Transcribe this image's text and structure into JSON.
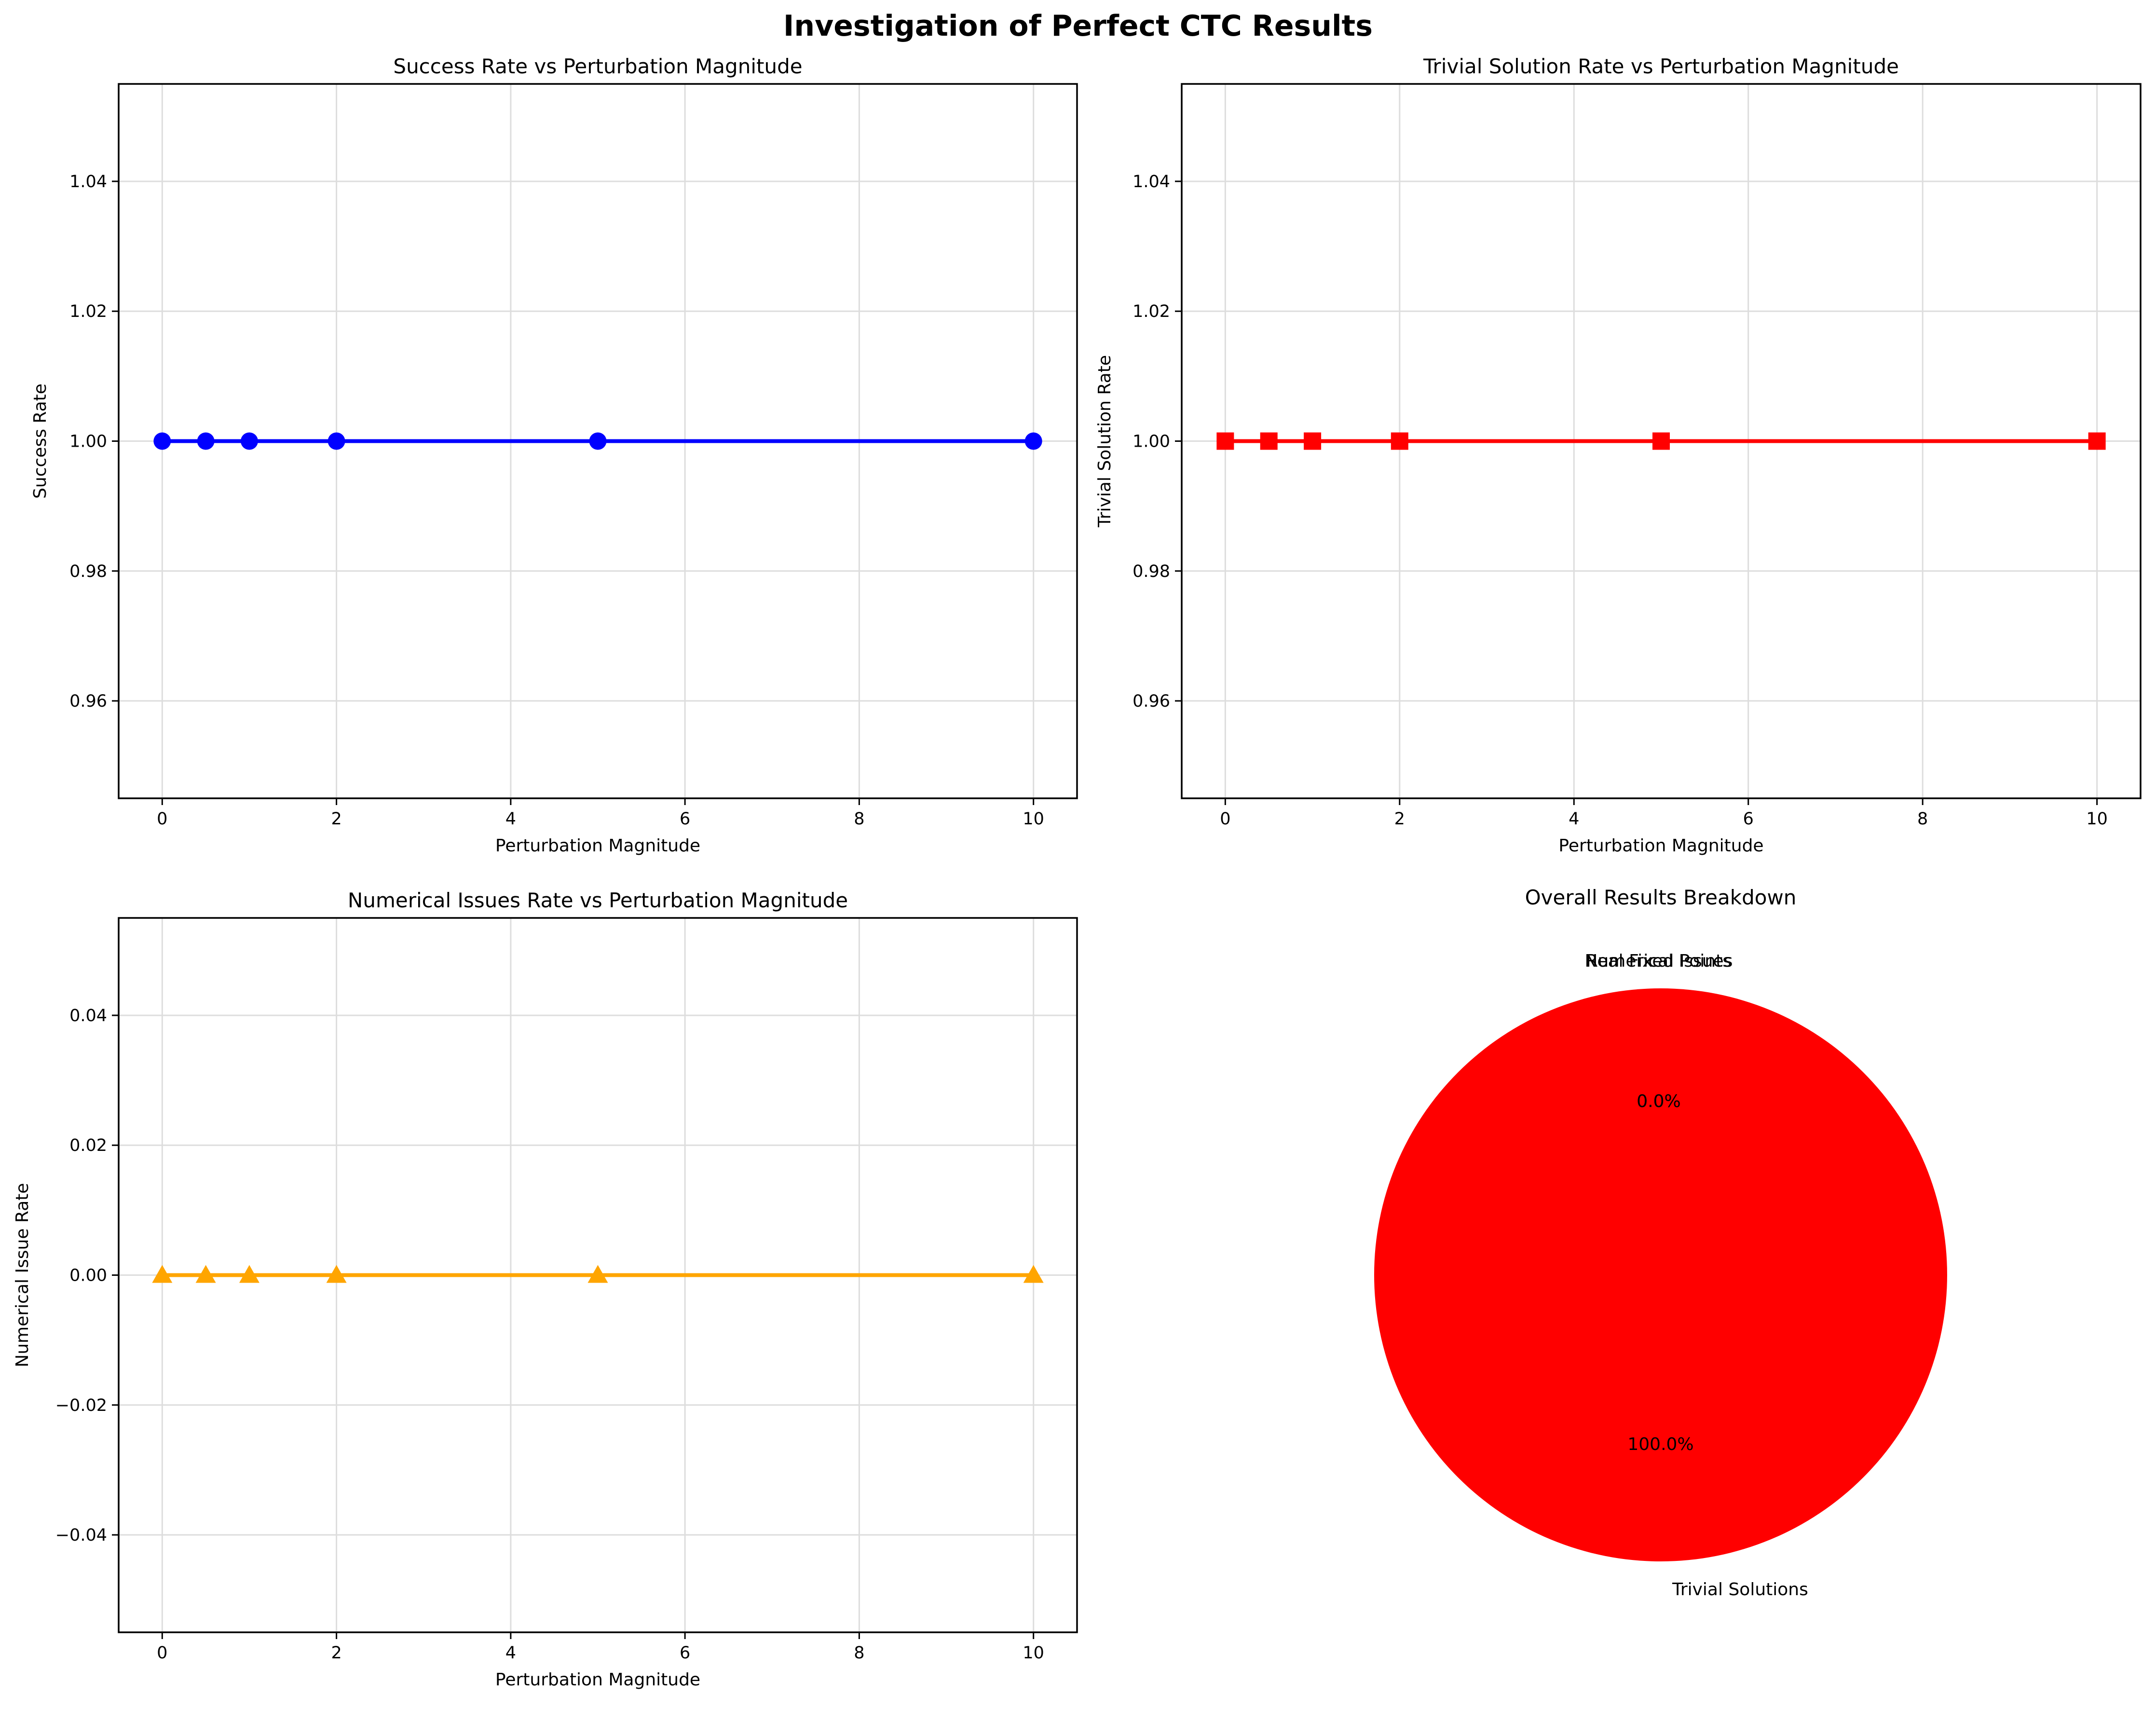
{
  "figure": {
    "title": "Investigation of Perfect CTC Results"
  },
  "colors": {
    "grid": "#dddddd",
    "axis": "#000000"
  },
  "chart_data": [
    {
      "type": "line",
      "title": "Success Rate vs Perturbation Magnitude",
      "xlabel": "Perturbation Magnitude",
      "ylabel": "Success Rate",
      "xlim": [
        -0.5,
        10.5
      ],
      "ylim": [
        0.945,
        1.055
      ],
      "xticks": [
        0,
        2,
        4,
        6,
        8,
        10
      ],
      "xtick_labels": [
        "0",
        "2",
        "4",
        "6",
        "8",
        "10"
      ],
      "yticks": [
        0.96,
        0.98,
        1.0,
        1.02,
        1.04
      ],
      "ytick_labels": [
        "0.96",
        "0.98",
        "1.00",
        "1.02",
        "1.04"
      ],
      "grid": true,
      "series": [
        {
          "x": [
            0,
            0.5,
            1,
            2,
            5,
            10
          ],
          "y": [
            1,
            1,
            1,
            1,
            1,
            1
          ],
          "color": "#0000ff",
          "marker": "circle"
        }
      ]
    },
    {
      "type": "line",
      "title": "Trivial Solution Rate vs Perturbation Magnitude",
      "xlabel": "Perturbation Magnitude",
      "ylabel": "Trivial Solution Rate",
      "xlim": [
        -0.5,
        10.5
      ],
      "ylim": [
        0.945,
        1.055
      ],
      "xticks": [
        0,
        2,
        4,
        6,
        8,
        10
      ],
      "xtick_labels": [
        "0",
        "2",
        "4",
        "6",
        "8",
        "10"
      ],
      "yticks": [
        0.96,
        0.98,
        1.0,
        1.02,
        1.04
      ],
      "ytick_labels": [
        "0.96",
        "0.98",
        "1.00",
        "1.02",
        "1.04"
      ],
      "grid": true,
      "series": [
        {
          "x": [
            0,
            0.5,
            1,
            2,
            5,
            10
          ],
          "y": [
            1,
            1,
            1,
            1,
            1,
            1
          ],
          "color": "#ff0000",
          "marker": "square"
        }
      ]
    },
    {
      "type": "line",
      "title": "Numerical Issues Rate vs Perturbation Magnitude",
      "xlabel": "Perturbation Magnitude",
      "ylabel": "Numerical Issue Rate",
      "xlim": [
        -0.5,
        10.5
      ],
      "ylim": [
        -0.055,
        0.055
      ],
      "xticks": [
        0,
        2,
        4,
        6,
        8,
        10
      ],
      "xtick_labels": [
        "0",
        "2",
        "4",
        "6",
        "8",
        "10"
      ],
      "yticks": [
        -0.04,
        -0.02,
        0.0,
        0.02,
        0.04
      ],
      "ytick_labels": [
        "−0.04",
        "−0.02",
        "0.00",
        "0.02",
        "0.04"
      ],
      "grid": true,
      "series": [
        {
          "x": [
            0,
            0.5,
            1,
            2,
            5,
            10
          ],
          "y": [
            0,
            0,
            0,
            0,
            0,
            0
          ],
          "color": "#ffa500",
          "marker": "triangle"
        }
      ]
    },
    {
      "type": "pie",
      "title": "Overall Results Breakdown",
      "slices": [
        {
          "label": "Trivial Solutions",
          "value": 100,
          "pct_label": "100.0%",
          "color": "#ff0000"
        },
        {
          "label": "Numerical Issues",
          "value": 0,
          "pct_label": "0.0%",
          "color": "#ffa500"
        },
        {
          "label": "Real Fixed Points",
          "value": 0,
          "pct_label": "0.0%",
          "color": "#00aa00"
        }
      ]
    }
  ]
}
